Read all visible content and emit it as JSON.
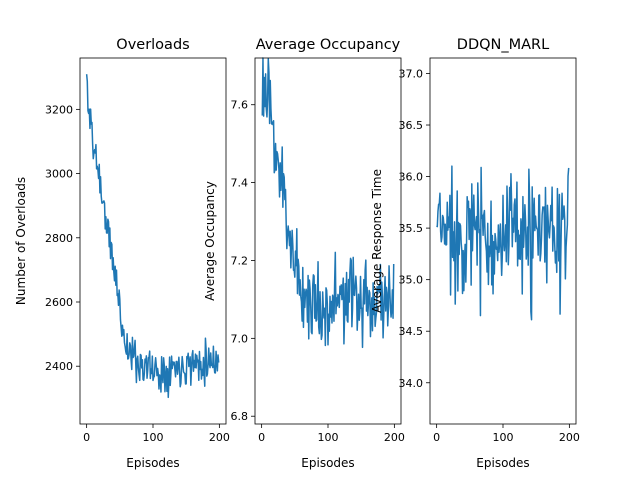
{
  "colors": {
    "series": "#1f77b4"
  },
  "chart_data": [
    {
      "type": "line",
      "title": "Overloads",
      "xlabel": "Episodes",
      "ylabel": "Number of Overloads",
      "xlim": [
        -10,
        210
      ],
      "ylim": [
        2220,
        3360
      ],
      "xticks": [
        0,
        100,
        200
      ],
      "yticks": [
        2400,
        2600,
        2800,
        3000,
        3200
      ],
      "tick_labels_x": [
        "0",
        "100",
        "200"
      ],
      "tick_labels_y": [
        "2400",
        "2600",
        "2800",
        "3000",
        "3200"
      ],
      "series": [
        {
          "seed": 11,
          "noise": 95,
          "points": [
            [
              0,
              3300
            ],
            [
              3,
              3170
            ],
            [
              6,
              3210
            ],
            [
              9,
              3080
            ],
            [
              15,
              3050
            ],
            [
              20,
              2980
            ],
            [
              25,
              2900
            ],
            [
              30,
              2850
            ],
            [
              35,
              2780
            ],
            [
              40,
              2720
            ],
            [
              45,
              2660
            ],
            [
              50,
              2580
            ],
            [
              55,
              2510
            ],
            [
              60,
              2460
            ],
            [
              70,
              2430
            ],
            [
              80,
              2410
            ],
            [
              90,
              2400
            ],
            [
              100,
              2390
            ],
            [
              110,
              2380
            ],
            [
              120,
              2390
            ],
            [
              130,
              2400
            ],
            [
              140,
              2400
            ],
            [
              150,
              2410
            ],
            [
              160,
              2410
            ],
            [
              170,
              2410
            ],
            [
              180,
              2420
            ],
            [
              190,
              2420
            ],
            [
              199,
              2430
            ]
          ]
        }
      ]
    },
    {
      "type": "line",
      "title": "Average Occupancy",
      "xlabel": "Episodes",
      "ylabel": "Average Occupancy",
      "xlim": [
        -10,
        210
      ],
      "ylim": [
        6.78,
        7.72
      ],
      "xticks": [
        0,
        100,
        200
      ],
      "yticks": [
        6.8,
        7.0,
        7.2,
        7.4,
        7.6
      ],
      "tick_labels_x": [
        "0",
        "100",
        "200"
      ],
      "tick_labels_y": [
        "6.8",
        "7.0",
        "7.2",
        "7.4",
        "7.6"
      ],
      "series": [
        {
          "seed": 23,
          "noise": 0.16,
          "points": [
            [
              0,
              7.65
            ],
            [
              5,
              7.62
            ],
            [
              10,
              7.6
            ],
            [
              15,
              7.55
            ],
            [
              20,
              7.5
            ],
            [
              25,
              7.45
            ],
            [
              30,
              7.4
            ],
            [
              35,
              7.35
            ],
            [
              40,
              7.3
            ],
            [
              45,
              7.25
            ],
            [
              50,
              7.2
            ],
            [
              55,
              7.16
            ],
            [
              60,
              7.12
            ],
            [
              70,
              7.1
            ],
            [
              80,
              7.09
            ],
            [
              90,
              7.08
            ],
            [
              100,
              7.08
            ],
            [
              110,
              7.1
            ],
            [
              120,
              7.1
            ],
            [
              130,
              7.1
            ],
            [
              140,
              7.1
            ],
            [
              150,
              7.1
            ],
            [
              160,
              7.1
            ],
            [
              170,
              7.1
            ],
            [
              180,
              7.11
            ],
            [
              190,
              7.11
            ],
            [
              199,
              7.12
            ]
          ]
        }
      ]
    },
    {
      "type": "line",
      "title": "DDQN_MARL",
      "xlabel": "Episodes",
      "ylabel": "Average Response Time",
      "xlim": [
        -10,
        210
      ],
      "ylim": [
        33.6,
        37.15
      ],
      "xticks": [
        0,
        100,
        200
      ],
      "yticks": [
        34.0,
        34.5,
        35.0,
        35.5,
        36.0,
        36.5,
        37.0
      ],
      "tick_labels_x": [
        "0",
        "100",
        "200"
      ],
      "tick_labels_y": [
        "34.0",
        "34.5",
        "35.0",
        "35.5",
        "36.0",
        "36.5",
        "37.0"
      ],
      "series": [
        {
          "seed": 37,
          "noise": 0.9,
          "points": [
            [
              0,
              35.5
            ],
            [
              50,
              35.45
            ],
            [
              100,
              35.4
            ],
            [
              150,
              35.4
            ],
            [
              199,
              35.45
            ]
          ]
        }
      ]
    }
  ]
}
